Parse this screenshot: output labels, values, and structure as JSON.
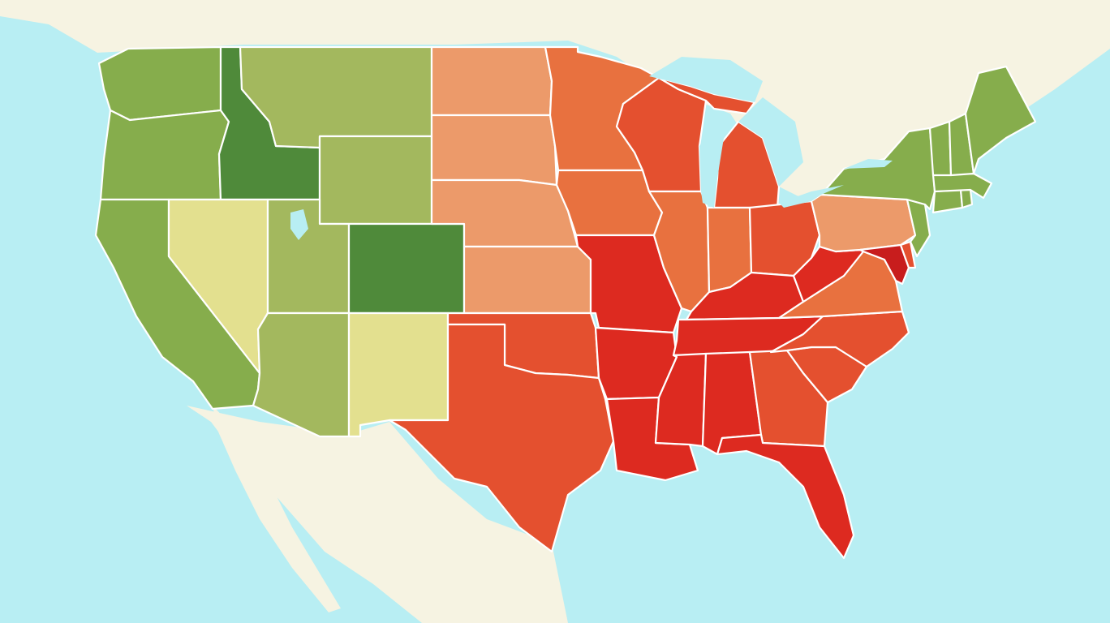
{
  "map": {
    "type": "choropleth",
    "region": "contiguous-united-states",
    "labels_visible": false,
    "legend_visible": false,
    "colors": {
      "ocean": "#b8eef3",
      "foreign_land": "#f6f3e2",
      "dark_green": "#4f8a3a",
      "green": "#86ad4c",
      "olive": "#a3b85e",
      "pale_yellow": "#e3e08f",
      "light_orange": "#ec9a6a",
      "orange": "#e8713f",
      "red_orange": "#e4502f",
      "red": "#dd2a20",
      "deep_red": "#c81d1d"
    },
    "state_classes": {
      "WA": "green",
      "OR": "green",
      "CA": "green",
      "ID": "dark_green",
      "MT": "olive",
      "NV": "pale_yellow",
      "UT": "olive",
      "WY": "olive",
      "CO": "dark_green",
      "AZ": "olive",
      "NM": "pale_yellow",
      "ND": "light_orange",
      "SD": "light_orange",
      "NE": "light_orange",
      "KS": "light_orange",
      "OK": "red_orange",
      "TX": "red_orange",
      "MN": "orange",
      "IA": "orange",
      "MO": "red",
      "AR": "red",
      "LA": "red",
      "WI": "red_orange",
      "IL": "orange",
      "MI": "red_orange",
      "IN": "orange",
      "OH": "red_orange",
      "KY": "red",
      "TN": "red",
      "MS": "red",
      "AL": "red",
      "GA": "red_orange",
      "FL": "red",
      "SC": "red_orange",
      "NC": "red_orange",
      "VA": "orange",
      "WV": "red",
      "MD": "deep_red",
      "DE": "red_orange",
      "PA": "light_orange",
      "NJ": "green",
      "NY": "green",
      "CT": "green",
      "RI": "green",
      "MA": "green",
      "VT": "green",
      "NH": "green",
      "ME": "green"
    }
  }
}
